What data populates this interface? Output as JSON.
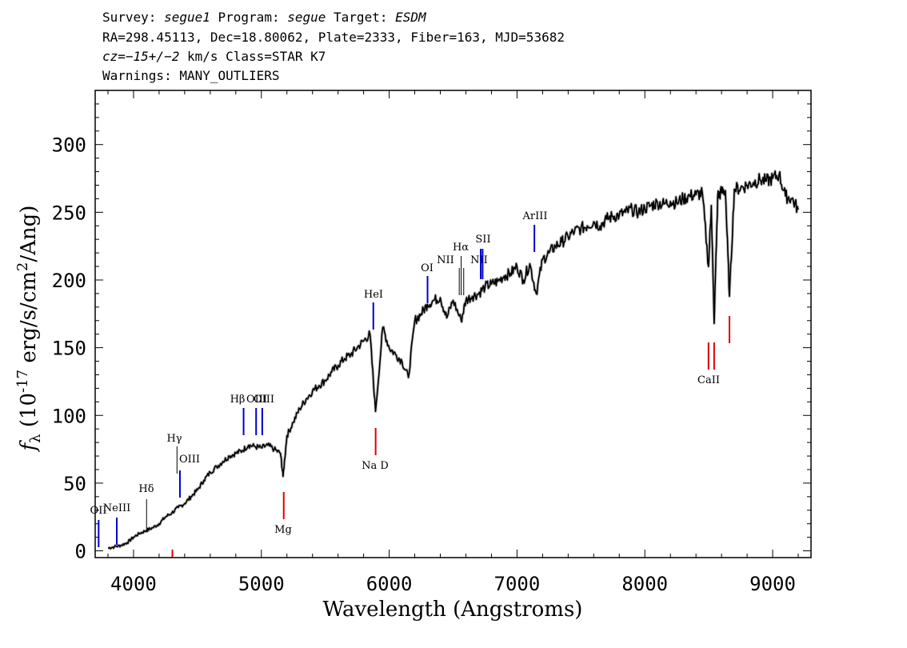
{
  "header": {
    "line1": {
      "survey_label": "Survey:",
      "survey": "segue1",
      "program_label": "Program:",
      "program": "segue",
      "target_label": "Target:",
      "target": "ESDM"
    },
    "line2": "RA=298.45113, Dec=18.80062, Plate=2333, Fiber=163, MJD=53682",
    "line3": {
      "cz": "cz=−15+/−2",
      "rest": "km/s Class=STAR K7"
    },
    "line4": "Warnings: MANY_OUTLIERS"
  },
  "chart_data": {
    "type": "line",
    "xlabel": "Wavelength (Angstroms)",
    "ylabel": "fλ (10^-17 erg/s/cm^2/Ang)",
    "xlim": [
      3700,
      9300
    ],
    "ylim": [
      -5,
      340
    ],
    "xticks": [
      4000,
      5000,
      6000,
      7000,
      8000,
      9000
    ],
    "yticks": [
      0,
      50,
      100,
      150,
      200,
      250,
      300
    ],
    "colors": {
      "spectrum": "#000000",
      "emission": "#0000cc",
      "absorption": "#dd0000",
      "sky": "#000000"
    },
    "series": [
      {
        "x": [
          3800,
          3850,
          3900,
          3950,
          4000,
          4050,
          4100,
          4150,
          4200,
          4250,
          4300,
          4350,
          4400,
          4450,
          4500,
          4550,
          4600,
          4650,
          4700,
          4750,
          4800,
          4850,
          4900,
          4950,
          5000,
          5050,
          5100,
          5150,
          5170,
          5200,
          5250,
          5300,
          5350,
          5400,
          5450,
          5500,
          5550,
          5600,
          5650,
          5700,
          5750,
          5800,
          5850,
          5893,
          5950,
          6000,
          6050,
          6100,
          6150,
          6200,
          6250,
          6300,
          6350,
          6400,
          6450,
          6500,
          6563,
          6600,
          6650,
          6700,
          6750,
          6800,
          6850,
          6900,
          6950,
          7000,
          7050,
          7100,
          7150,
          7200,
          7250,
          7300,
          7350,
          7400,
          7450,
          7500,
          7550,
          7600,
          7650,
          7700,
          7750,
          7800,
          7850,
          7900,
          7950,
          8000,
          8050,
          8100,
          8150,
          8200,
          8250,
          8300,
          8350,
          8400,
          8450,
          8498,
          8520,
          8542,
          8570,
          8600,
          8630,
          8662,
          8700,
          8750,
          8800,
          8850,
          8900,
          8950,
          9000,
          9050,
          9100,
          9150,
          9200
        ],
        "y": [
          2,
          3,
          4,
          6,
          10,
          13,
          15,
          17,
          20,
          25,
          28,
          32,
          35,
          40,
          45,
          52,
          58,
          62,
          66,
          70,
          72,
          74,
          78,
          77,
          76,
          78,
          75,
          72,
          55,
          85,
          95,
          105,
          112,
          118,
          122,
          126,
          132,
          137,
          142,
          145,
          150,
          155,
          160,
          103,
          165,
          150,
          145,
          140,
          128,
          170,
          175,
          182,
          185,
          187,
          172,
          185,
          170,
          185,
          188,
          190,
          195,
          197,
          199,
          203,
          205,
          210,
          200,
          212,
          190,
          215,
          220,
          225,
          228,
          232,
          236,
          238,
          240,
          243,
          240,
          245,
          247,
          248,
          250,
          252,
          250,
          253,
          255,
          257,
          256,
          258,
          257,
          260,
          262,
          263,
          264,
          210,
          255,
          168,
          262,
          265,
          266,
          188,
          267,
          268,
          270,
          272,
          274,
          273,
          275,
          278,
          262,
          260,
          252
        ]
      }
    ],
    "emission_lines": [
      {
        "label": "OII",
        "x": 3727
      },
      {
        "label": "NeIII",
        "x": 3869
      },
      {
        "label": "Hδ",
        "x": 4102
      },
      {
        "label": "Hγ",
        "x": 4340
      },
      {
        "label": "OIII",
        "x": 4363
      },
      {
        "label": "Hβ",
        "x": 4861
      },
      {
        "label": "OIII",
        "x": 4959
      },
      {
        "label": "OIII",
        "x": 5007
      },
      {
        "label": "HeI",
        "x": 5876
      },
      {
        "label": "OI",
        "x": 6300
      },
      {
        "label": "NII",
        "x": 6548
      },
      {
        "label": "Hα",
        "x": 6563
      },
      {
        "label": "NII",
        "x": 6583
      },
      {
        "label": "SII",
        "x": 6716
      },
      {
        "label": "SII",
        "x": 6731
      },
      {
        "label": "ArIII",
        "x": 7136
      }
    ],
    "absorption_lines": [
      {
        "label": "",
        "x": 4304
      },
      {
        "label": "Mg",
        "x": 5175
      },
      {
        "label": "Na D",
        "x": 5894
      },
      {
        "label": "CaII",
        "x": 8498
      },
      {
        "label": "CaII",
        "x": 8542
      },
      {
        "label": "CaII",
        "x": 8662
      }
    ]
  }
}
